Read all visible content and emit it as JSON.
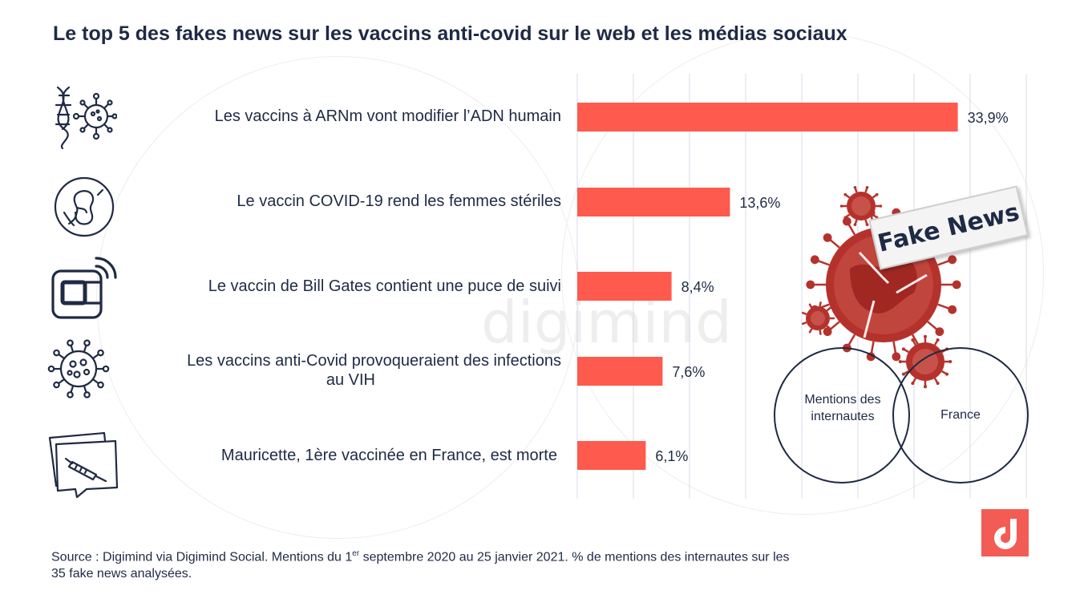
{
  "title": "Le top 5 des fakes news sur les vaccins anti-covid sur le web et les médias sociaux",
  "chart_data": {
    "type": "bar",
    "orientation": "horizontal",
    "categories": [
      "Les vaccins à ARNm vont modifier l’ADN humain",
      "Le vaccin COVID-19 rend les femmes stériles",
      "Le vaccin de Bill Gates contient une puce de suivi",
      "Les vaccins anti-Covid provoqueraient des infections au  VIH",
      "Mauricette, 1ère vaccinée en France, est morte"
    ],
    "category_lines": [
      [
        "Les vaccins à ARNm vont modifier l’ADN humain"
      ],
      [
        "Le vaccin COVID-19 rend les femmes stériles"
      ],
      [
        "Le vaccin de Bill Gates contient une puce de suivi"
      ],
      [
        "Les vaccins anti-Covid provoqueraient des infections",
        "au  VIH"
      ],
      [
        "Mauricette, 1ère vaccinée en France, est morte"
      ]
    ],
    "values": [
      33.9,
      13.6,
      8.4,
      7.6,
      6.1
    ],
    "value_labels": [
      "33,9%",
      "13,6%",
      "8,4%",
      "7,6%",
      "6,1%"
    ],
    "xlim": [
      0,
      40
    ],
    "grid": true,
    "bar_color": "#ff5a4e",
    "grid_color": "#d8dbe8"
  },
  "icons": [
    "dna-virus-icon",
    "fetus-icon",
    "chip-signal-icon",
    "virus-icon",
    "syringe-message-icon"
  ],
  "venn": {
    "left_label": "Mentions des internautes",
    "right_label": "France",
    "sign": "Fake News"
  },
  "watermark": "digimind",
  "source": {
    "prefix": "Source : Digimind via Digimind Social. Mentions du 1",
    "sup": "er",
    "suffix": " septembre 2020 au 25 janvier 2021. % de mentions des internautes sur les 35 fake news analysées."
  },
  "colors": {
    "accent": "#ff5a4e",
    "text": "#1f2a44",
    "virus": "#b5322c",
    "logo": "#f25c54"
  }
}
